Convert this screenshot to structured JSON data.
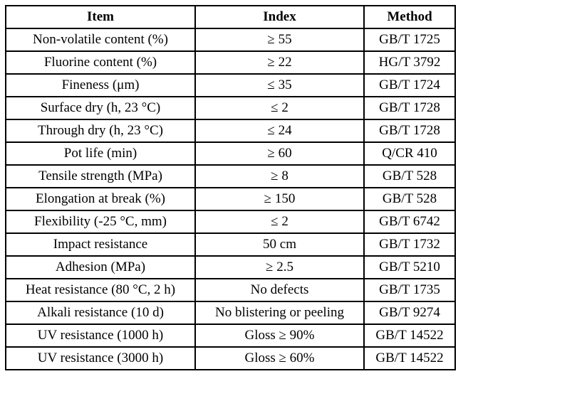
{
  "table": {
    "columns": [
      {
        "label": "Item"
      },
      {
        "label": "Index"
      },
      {
        "label": "Method"
      }
    ],
    "rows": [
      [
        "Non-volatile content (%)",
        "≥ 55",
        "GB/T 1725"
      ],
      [
        "Fluorine content (%)",
        "≥ 22",
        "HG/T 3792"
      ],
      [
        "Fineness (μm)",
        "≤ 35",
        "GB/T 1724"
      ],
      [
        "Surface dry (h, 23 °C)",
        "≤ 2",
        "GB/T 1728"
      ],
      [
        "Through dry (h, 23 °C)",
        "≤ 24",
        "GB/T 1728"
      ],
      [
        "Pot life (min)",
        "≥ 60",
        "Q/CR 410"
      ],
      [
        "Tensile strength (MPa)",
        "≥ 8",
        "GB/T 528"
      ],
      [
        "Elongation at break (%)",
        "≥ 150",
        "GB/T 528"
      ],
      [
        "Flexibility (-25 °C, mm)",
        "≤ 2",
        "GB/T 6742"
      ],
      [
        "Impact resistance",
        "50 cm",
        "GB/T 1732"
      ],
      [
        "Adhesion (MPa)",
        "≥ 2.5",
        "GB/T 5210"
      ],
      [
        "Heat resistance (80 °C, 2 h)",
        "No defects",
        "GB/T 1735"
      ],
      [
        "Alkali resistance (10 d)",
        "No blistering or peeling",
        "GB/T 9274"
      ],
      [
        "UV resistance (1000 h)",
        "Gloss ≥ 90%",
        "GB/T 14522"
      ],
      [
        "UV resistance (3000 h)",
        "Gloss ≥ 60%",
        "GB/T 14522"
      ]
    ],
    "text_color": "#000000",
    "border_color": "#000000",
    "background_color": "#ffffff"
  },
  "chart_data": {
    "type": "table",
    "title": "",
    "columns": [
      "Item",
      "Index",
      "Method"
    ],
    "rows": [
      [
        "Non-volatile content (%)",
        "≥ 55",
        "GB/T 1725"
      ],
      [
        "Fluorine content (%)",
        "≥ 22",
        "HG/T 3792"
      ],
      [
        "Fineness (μm)",
        "≤ 35",
        "GB/T 1724"
      ],
      [
        "Surface dry (h, 23 °C)",
        "≤ 2",
        "GB/T 1728"
      ],
      [
        "Through dry (h, 23 °C)",
        "≤ 24",
        "GB/T 1728"
      ],
      [
        "Pot life (min)",
        "≥ 60",
        "Q/CR 410"
      ],
      [
        "Tensile strength (MPa)",
        "≥ 8",
        "GB/T 528"
      ],
      [
        "Elongation at break (%)",
        "≥ 150",
        "GB/T 528"
      ],
      [
        "Flexibility (-25 °C, mm)",
        "≤ 2",
        "GB/T 6742"
      ],
      [
        "Impact resistance",
        "50 cm",
        "GB/T 1732"
      ],
      [
        "Adhesion (MPa)",
        "≥ 2.5",
        "GB/T 5210"
      ],
      [
        "Heat resistance (80 °C, 2 h)",
        "No defects",
        "GB/T 1735"
      ],
      [
        "Alkali resistance (10 d)",
        "No blistering or peeling",
        "GB/T 9274"
      ],
      [
        "UV resistance (1000 h)",
        "Gloss ≥ 90%",
        "GB/T 14522"
      ],
      [
        "UV resistance (3000 h)",
        "Gloss ≥ 60%",
        "GB/T 14522"
      ]
    ]
  }
}
